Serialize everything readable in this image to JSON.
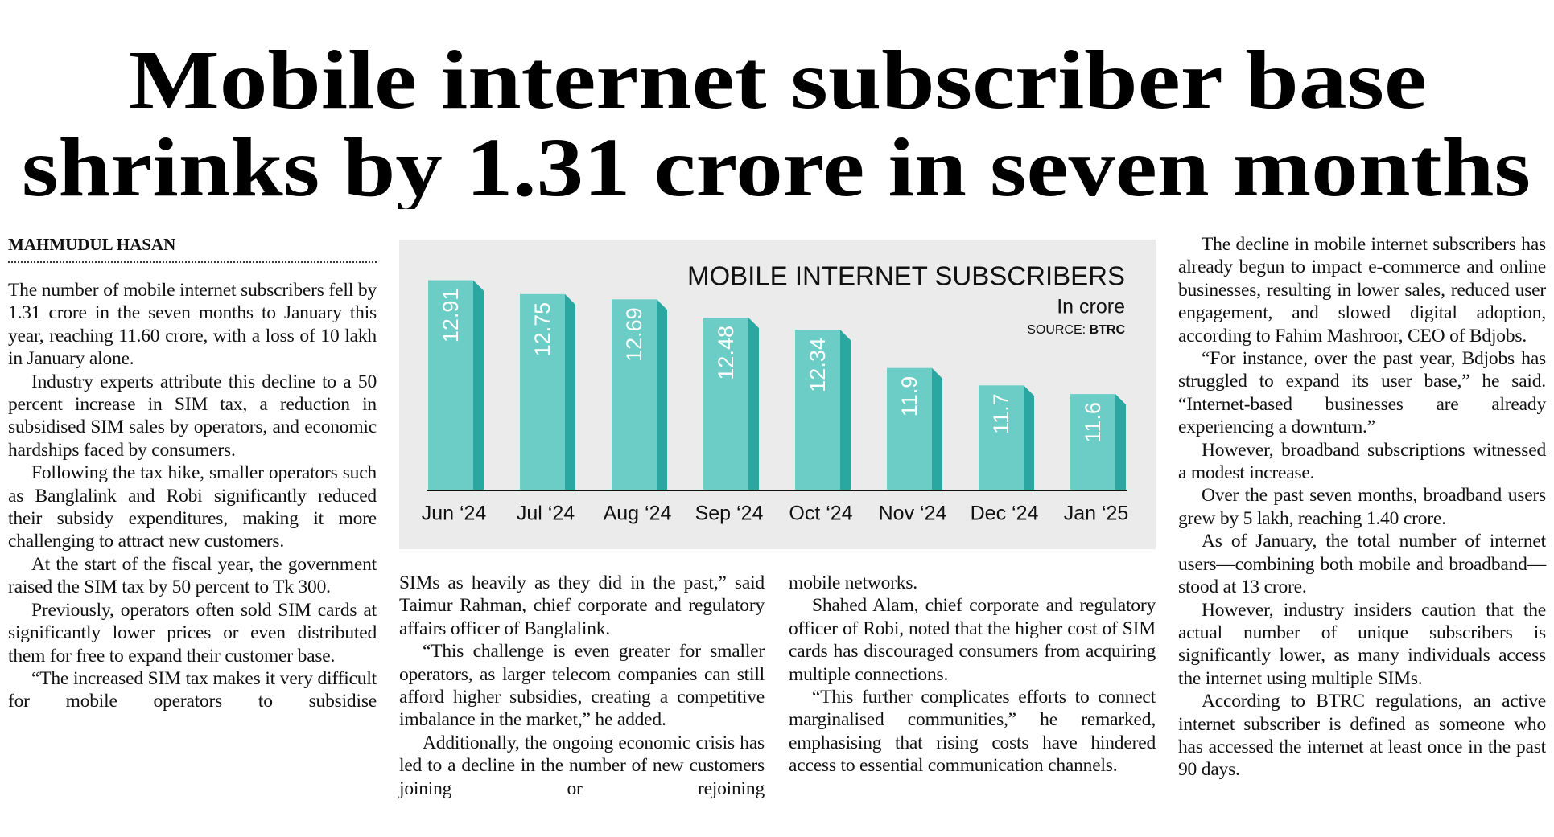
{
  "headline": {
    "lines": [
      "Mobile internet subscriber base",
      "shrinks by 1.31 crore in seven months"
    ]
  },
  "byline": "MAHMUDUL HASAN",
  "columns": [
    {
      "paragraphs": [
        "The number of mobile internet subscribers fell by 1.31 crore in the seven months to January this year, reaching 11.60 crore, with a loss of 10 lakh in January alone.",
        "Industry experts attribute this decline to a 50 percent increase in SIM tax, a reduction in subsidised SIM sales by operators, and economic hardships faced by consumers.",
        "Following the tax hike, smaller operators such as Banglalink and Robi significantly reduced their subsidy expenditures, making it more challenging to attract new customers.",
        "At the start of the fiscal year, the government raised the SIM tax by 50 percent to Tk 300.",
        "Previously, operators often sold SIM cards at significantly lower prices or even distributed them for free to expand their customer base.",
        "“The increased SIM tax makes it very difficult for mobile operators to subsidise"
      ]
    },
    {
      "paragraphs": [
        "SIMs as heavily as they did in the past,” said Taimur Rahman, chief corporate and regulatory affairs officer of Banglalink.",
        "“This challenge is even greater for smaller operators, as larger telecom companies can still afford higher subsidies, creating a competitive imbalance in the market,” he added.",
        "Additionally, the ongoing economic crisis has led to a decline in the number of new customers joining or rejoining"
      ]
    },
    {
      "paragraphs": [
        "mobile networks.",
        "Shahed Alam, chief corporate and regulatory officer of Robi, noted that the higher cost of SIM cards has discouraged consumers from acquiring multiple connections.",
        "“This further complicates efforts to connect marginalised communities,” he remarked, emphasising that rising costs have hindered access to essential communication channels."
      ]
    },
    {
      "paragraphs": [
        "The decline in mobile internet subscribers has already begun to impact e-commerce and online businesses, resulting in lower sales, reduced user engagement, and slowed digital adoption, according to Fahim Mashroor, CEO of Bdjobs.",
        "“For instance, over the past year, Bdjobs has struggled to expand its user base,” he said. “Internet-based businesses are already experiencing a downturn.”",
        "However, broadband subscriptions witnessed a modest increase.",
        "Over the past seven months, broadband users grew by 5 lakh, reaching 1.40 crore.",
        "As of January, the total number of internet users—combining both mobile and broadband—stood at 13 crore.",
        "However, industry insiders caution that the actual number of unique subscribers is significantly lower, as many individuals access the internet using multiple SIMs.",
        "According to BTRC regulations, an active internet subscriber is defined as someone who has accessed the internet at least once in the past 90 days."
      ]
    }
  ],
  "chart_data": {
    "type": "bar",
    "title": "MOBILE INTERNET SUBSCRIBERS",
    "subtitle": "In crore",
    "source_label": "SOURCE:",
    "source": "BTRC",
    "categories": [
      "Jun ‘24",
      "Jul ‘24",
      "Aug ‘24",
      "Sep ‘24",
      "Oct ‘24",
      "Nov ‘24",
      "Dec ‘24",
      "Jan ‘25"
    ],
    "values": [
      12.91,
      12.75,
      12.69,
      12.48,
      12.34,
      11.9,
      11.7,
      11.6
    ],
    "color": "#6ccdc6",
    "side_color": "#2aa7a1",
    "ylim": [
      10.5,
      13.1
    ]
  }
}
